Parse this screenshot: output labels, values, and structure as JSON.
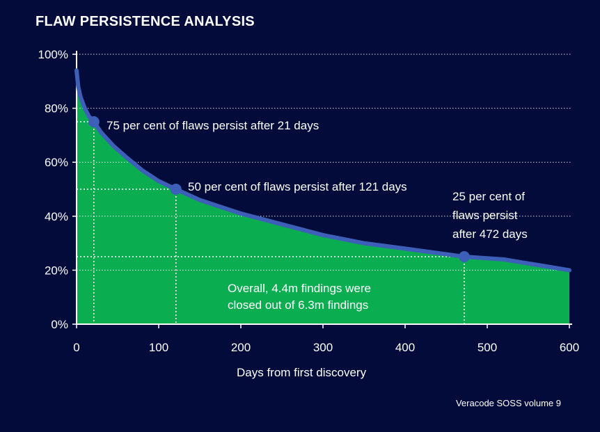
{
  "chart_data": {
    "type": "area",
    "title": "FLAW PERSISTENCE ANALYSIS",
    "xlabel": "Days from first discovery",
    "ylabel": "",
    "xlim": [
      0,
      600
    ],
    "ylim": [
      0,
      100
    ],
    "x_ticks": [
      0,
      100,
      200,
      300,
      400,
      500,
      600
    ],
    "x_tick_labels": [
      "0",
      "100",
      "200",
      "300",
      "400",
      "500",
      "600"
    ],
    "y_ticks": [
      0,
      20,
      40,
      60,
      80,
      100
    ],
    "y_tick_labels": [
      "0%",
      "20%",
      "40%",
      "60%",
      "80%",
      "100%"
    ],
    "grid": "horizontal dotted",
    "series": [
      {
        "x": [
          0,
          2,
          5,
          10,
          15,
          21,
          30,
          45,
          60,
          80,
          100,
          121,
          150,
          200,
          250,
          300,
          350,
          400,
          472,
          520,
          560,
          600
        ],
        "values": [
          94,
          88,
          84,
          80,
          77,
          75,
          71,
          66,
          62,
          57,
          53,
          50,
          46,
          41,
          37,
          33,
          30,
          28,
          25,
          24,
          22,
          20
        ]
      }
    ],
    "highlighted_points": [
      {
        "x": 21,
        "y": 75,
        "label_lines": [
          "75 per cent of flaws persist after 21 days"
        ]
      },
      {
        "x": 121,
        "y": 50,
        "label_lines": [
          "50 per cent of flaws persist after 121 days"
        ]
      },
      {
        "x": 472,
        "y": 25,
        "label_lines": [
          "25 per cent of",
          "flaws persist",
          "after 472 days"
        ]
      }
    ],
    "annotation": [
      "Overall, 4.4m findings were",
      "closed out of 6.3m findings"
    ],
    "colors": {
      "background": "#020b3a",
      "fill": "#0aad50",
      "line": "#3d5fb8",
      "marker": "#3d5fb8",
      "grid": "#ffffff"
    }
  },
  "source": "Veracode SOSS volume 9"
}
